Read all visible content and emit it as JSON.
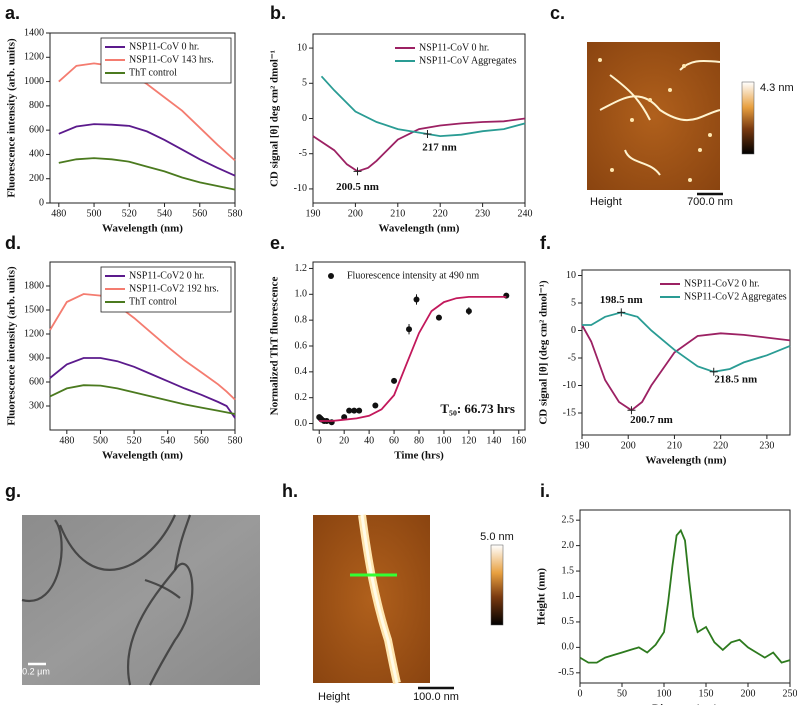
{
  "chart_data": [
    {
      "type": "line",
      "label": "a.",
      "xlabel": "Wavelength (nm)",
      "ylabel": "Fluorescence intensity (arb. units)",
      "x": [
        480,
        490,
        500,
        510,
        520,
        530,
        540,
        550,
        560,
        570,
        580
      ],
      "xlim": [
        475,
        580
      ],
      "xticks": [
        480,
        500,
        520,
        540,
        560,
        580
      ],
      "ylim": [
        0,
        1400
      ],
      "yticks": [
        0,
        200,
        400,
        600,
        800,
        1000,
        1200,
        1400
      ],
      "legend": "upper right",
      "legend_frame": true,
      "series": [
        {
          "name": "NSP11-CoV 0 hr.",
          "color": "#5b1a8c",
          "values": [
            570,
            630,
            650,
            645,
            635,
            590,
            520,
            440,
            360,
            290,
            225
          ]
        },
        {
          "name": "NSP11-CoV 143 hrs.",
          "color": "#f47c70",
          "values": [
            1000,
            1130,
            1150,
            1130,
            1060,
            980,
            870,
            760,
            620,
            480,
            350
          ]
        },
        {
          "name": "ThT control",
          "color": "#4b7a1f",
          "values": [
            330,
            360,
            370,
            360,
            340,
            300,
            260,
            210,
            170,
            140,
            110
          ]
        }
      ]
    },
    {
      "type": "line",
      "label": "b.",
      "xlabel": "Wavelength (nm)",
      "ylabel": "CD signal [θ] deg cm² dmol⁻¹",
      "xlim": [
        190,
        240
      ],
      "xticks": [
        190,
        200,
        210,
        220,
        230,
        240
      ],
      "ylim": [
        -12,
        12
      ],
      "yticks": [
        -10,
        -5,
        0,
        5,
        10
      ],
      "legend": "upper right",
      "legend_frame": false,
      "series": [
        {
          "name": "NSP11-CoV 0 hr.",
          "color": "#9c2163",
          "x": [
            190,
            195,
            198,
            200.5,
            203,
            205,
            210,
            215,
            220,
            225,
            230,
            235,
            240
          ],
          "values": [
            -2.5,
            -4.5,
            -6.5,
            -7.5,
            -7,
            -6,
            -3,
            -1.5,
            -1,
            -0.7,
            -0.5,
            -0.4,
            0
          ]
        },
        {
          "name": "NSP11-CoV Aggregates",
          "color": "#2a9c94",
          "x": [
            192,
            195,
            200,
            205,
            210,
            217,
            220,
            225,
            230,
            235,
            240
          ],
          "values": [
            6,
            4,
            1,
            -0.5,
            -1.5,
            -2.2,
            -2.5,
            -2.3,
            -1.8,
            -1.5,
            -0.7
          ]
        }
      ],
      "annotations": [
        {
          "text": "200.5 nm",
          "x": 200.5,
          "y": -7.5
        },
        {
          "text": "217 nm",
          "x": 217,
          "y": -2.2
        }
      ]
    },
    {
      "type": "image",
      "label": "c.",
      "colorbar_max": "4.3 nm",
      "caption": "Height",
      "scale_bar": "700.0 nm"
    },
    {
      "type": "line",
      "label": "d.",
      "xlabel": "Wavelength (nm)",
      "ylabel": "Fluorescence intensity (arb. units)",
      "x": [
        470,
        480,
        490,
        500,
        510,
        520,
        530,
        540,
        550,
        560,
        570,
        575,
        580
      ],
      "xlim": [
        470,
        580
      ],
      "xticks": [
        480,
        500,
        520,
        540,
        560,
        580
      ],
      "ylim": [
        0,
        2100
      ],
      "yticks": [
        300,
        600,
        900,
        1200,
        1500,
        1800
      ],
      "legend": "upper right",
      "legend_frame": true,
      "series": [
        {
          "name": "NSP11-CoV2 0 hr.",
          "color": "#5b1a8c",
          "values": [
            650,
            820,
            900,
            900,
            860,
            790,
            700,
            610,
            520,
            440,
            350,
            300,
            150
          ]
        },
        {
          "name": "NSP11-CoV2 192 hrs.",
          "color": "#f47c70",
          "values": [
            1250,
            1600,
            1700,
            1680,
            1560,
            1400,
            1220,
            1040,
            870,
            720,
            570,
            480,
            380
          ]
        },
        {
          "name": "ThT control",
          "color": "#4b7a1f",
          "values": [
            420,
            520,
            560,
            555,
            520,
            470,
            420,
            370,
            320,
            280,
            240,
            220,
            200
          ]
        }
      ]
    },
    {
      "type": "scatter",
      "label": "e.",
      "xlabel": "Time (hrs)",
      "ylabel": "Normalized ThT fluorescence",
      "xlim": [
        -5,
        165
      ],
      "xticks": [
        0,
        20,
        40,
        60,
        80,
        100,
        120,
        140,
        160
      ],
      "ylim": [
        -0.05,
        1.25
      ],
      "yticks": [
        {
          "value": 0,
          "label": "0.0"
        },
        0.2,
        0.4,
        0.6,
        0.8,
        {
          "value": 1,
          "label": "1.0"
        },
        1.2
      ],
      "legend": "upper left",
      "legend_frame": false,
      "series": [
        {
          "name": "Fluorescence intensity at 490 nm",
          "type": "scatter",
          "color": "#111111",
          "x": [
            0,
            1,
            2,
            4,
            6,
            10,
            20,
            24,
            28,
            32,
            45,
            60,
            72,
            78,
            96,
            120,
            150
          ],
          "values": [
            0.05,
            0.04,
            0.03,
            0.02,
            0.02,
            0.01,
            0.05,
            0.1,
            0.1,
            0.1,
            0.14,
            0.33,
            0.73,
            0.96,
            0.82,
            0.87,
            0.99
          ],
          "errors": [
            0.01,
            0.01,
            0.01,
            0.01,
            0.01,
            0.01,
            0.01,
            0.02,
            0.01,
            0.01,
            0.02,
            0.02,
            0.04,
            0.04,
            0.02,
            0.03,
            0.01
          ]
        },
        {
          "type": "line",
          "color": "#c2185b",
          "x": [
            0,
            10,
            20,
            30,
            40,
            50,
            60,
            70,
            80,
            90,
            100,
            110,
            120,
            130,
            140,
            150
          ],
          "values": [
            0.02,
            0.02,
            0.03,
            0.04,
            0.06,
            0.11,
            0.22,
            0.46,
            0.7,
            0.87,
            0.94,
            0.97,
            0.98,
            0.98,
            0.98,
            0.98
          ]
        }
      ],
      "annotations": [
        {
          "text": "T₅₀: 66.73 hrs"
        }
      ]
    },
    {
      "type": "line",
      "label": "f.",
      "xlabel": "Wavelength (nm)",
      "ylabel": "CD signal [θ] (deg cm² dmol⁻¹)",
      "xlim": [
        190,
        235
      ],
      "xticks": [
        190,
        200,
        210,
        220,
        230
      ],
      "ylim": [
        -19,
        11
      ],
      "yticks": [
        -15,
        -10,
        -5,
        0,
        5,
        10
      ],
      "legend": "upper right",
      "legend_frame": false,
      "series": [
        {
          "name": "NSP11-CoV2 0 hr.",
          "color": "#9c2163",
          "x": [
            190,
            192,
            195,
            198,
            200.7,
            203,
            205,
            210,
            215,
            220,
            225,
            230,
            235
          ],
          "values": [
            1,
            -2,
            -9,
            -13,
            -14.5,
            -13,
            -10,
            -4,
            -1,
            -0.5,
            -0.8,
            -1.3,
            -1.8
          ]
        },
        {
          "name": "NSP11-CoV2 Aggregates",
          "color": "#2a9c94",
          "x": [
            190,
            192,
            195,
            198.5,
            202,
            205,
            210,
            215,
            218.5,
            222,
            225,
            230,
            235
          ],
          "values": [
            1,
            1,
            2.5,
            3.3,
            2.5,
            0,
            -3.5,
            -6.5,
            -7.5,
            -7,
            -5.8,
            -4.5,
            -2.8
          ]
        }
      ],
      "annotations": [
        {
          "text": "198.5 nm",
          "x": 198.5,
          "y": 3.3
        },
        {
          "text": "200.7 nm",
          "x": 200.7,
          "y": -14.5
        },
        {
          "text": "218.5 nm",
          "x": 218.5,
          "y": -7.5
        }
      ]
    },
    {
      "type": "image",
      "label": "g.",
      "scale_bar": "0.2 μm"
    },
    {
      "type": "image",
      "label": "h.",
      "colorbar_max": "5.0 nm",
      "caption": "Height",
      "scale_bar": "100.0 nm"
    },
    {
      "type": "line",
      "label": "i.",
      "xlabel": "Distance (nm)",
      "ylabel": "Height (nm)",
      "x": [
        0,
        10,
        20,
        30,
        40,
        50,
        60,
        70,
        80,
        90,
        100,
        105,
        110,
        115,
        120,
        125,
        130,
        135,
        140,
        150,
        160,
        170,
        180,
        190,
        200,
        210,
        220,
        230,
        240,
        250
      ],
      "xlim": [
        0,
        250
      ],
      "xticks": [
        0,
        50,
        100,
        150,
        200,
        250
      ],
      "ylim": [
        -0.7,
        2.7
      ],
      "yticks": [
        -0.5,
        {
          "value": 0,
          "label": "0.0"
        },
        0.5,
        {
          "value": 1,
          "label": "1.0"
        },
        1.5,
        {
          "value": 2,
          "label": "2.0"
        },
        2.5
      ],
      "series": [
        {
          "color": "#2d7a1e",
          "values": [
            -0.2,
            -0.3,
            -0.3,
            -0.2,
            -0.15,
            -0.1,
            -0.05,
            0,
            -0.1,
            0.05,
            0.3,
            0.9,
            1.6,
            2.2,
            2.3,
            2.1,
            1.3,
            0.6,
            0.3,
            0.4,
            0.1,
            -0.05,
            0.1,
            0.15,
            0,
            -0.1,
            -0.2,
            -0.1,
            -0.3,
            -0.25
          ]
        }
      ]
    }
  ]
}
